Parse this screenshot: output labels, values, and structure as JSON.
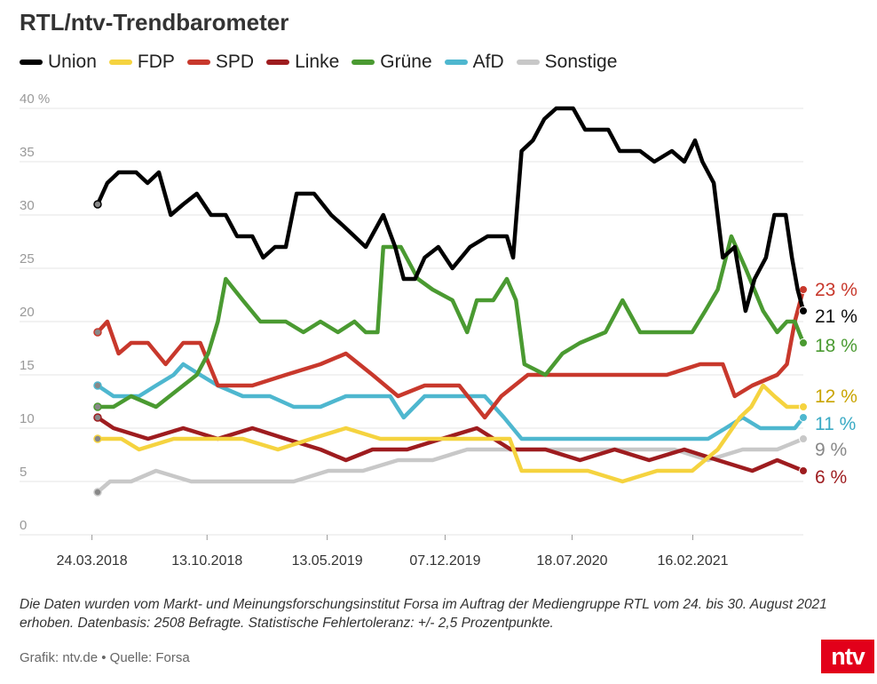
{
  "header": {
    "title": "RTL/ntv-Trendbarometer"
  },
  "colors": {
    "Union": "#000000",
    "FDP": "#f5d33f",
    "SPD": "#c8382c",
    "Linke": "#9e1c1f",
    "Grüne": "#4a9a31",
    "AfD": "#4eb7cf",
    "Sonstige": "#c8c8c8",
    "grid": "#e6e6e6",
    "tick": "#999999"
  },
  "footer": {
    "note": "Die Daten wurden vom Markt- und Meinungsforschungsinstitut Forsa im Auftrag der Mediengruppe RTL vom 24. bis 30. August 2021 erhoben. Datenbasis: 2508 Befragte. Statistische Fehlertoleranz: +/- 2,5 Prozentpunkte.",
    "credit": "Grafik: ntv.de • Quelle: Forsa",
    "logo": "ntv"
  },
  "chart_data": {
    "type": "line",
    "ylim": [
      0,
      40
    ],
    "yticks": [
      0,
      5,
      10,
      15,
      20,
      25,
      30,
      35,
      40
    ],
    "ytick_labels": [
      "0",
      "5",
      "10",
      "15",
      "20",
      "25",
      "30",
      "35",
      "40 %"
    ],
    "xticks": [
      "24.03.2018",
      "13.10.2018",
      "13.05.2019",
      "07.12.2019",
      "18.07.2020",
      "16.02.2021"
    ],
    "x_start": "2018-04-03",
    "x_end": "2021-08-30",
    "legend_position": "top-left",
    "series": [
      {
        "name": "Union",
        "end_label": "21 %",
        "points": [
          [
            "2018-04-03",
            31
          ],
          [
            "2018-04-20",
            33
          ],
          [
            "2018-05-10",
            34
          ],
          [
            "2018-06-10",
            34
          ],
          [
            "2018-06-30",
            33
          ],
          [
            "2018-07-20",
            34
          ],
          [
            "2018-08-10",
            30
          ],
          [
            "2018-09-01",
            31
          ],
          [
            "2018-09-25",
            32
          ],
          [
            "2018-10-20",
            30
          ],
          [
            "2018-11-15",
            30
          ],
          [
            "2018-12-05",
            28
          ],
          [
            "2019-01-01",
            28
          ],
          [
            "2019-01-20",
            26
          ],
          [
            "2019-02-10",
            27
          ],
          [
            "2019-03-01",
            27
          ],
          [
            "2019-03-20",
            32
          ],
          [
            "2019-04-20",
            32
          ],
          [
            "2019-05-20",
            30
          ],
          [
            "2019-06-10",
            29
          ],
          [
            "2019-06-30",
            28
          ],
          [
            "2019-07-20",
            27
          ],
          [
            "2019-08-20",
            30
          ],
          [
            "2019-09-10",
            27
          ],
          [
            "2019-09-25",
            24
          ],
          [
            "2019-10-15",
            24
          ],
          [
            "2019-11-01",
            26
          ],
          [
            "2019-11-25",
            27
          ],
          [
            "2019-12-20",
            25
          ],
          [
            "2020-01-20",
            27
          ],
          [
            "2020-02-20",
            28
          ],
          [
            "2020-03-25",
            28
          ],
          [
            "2020-04-05",
            26
          ],
          [
            "2020-04-20",
            36
          ],
          [
            "2020-05-10",
            37
          ],
          [
            "2020-05-30",
            39
          ],
          [
            "2020-06-20",
            40
          ],
          [
            "2020-07-20",
            40
          ],
          [
            "2020-08-10",
            38
          ],
          [
            "2020-09-20",
            38
          ],
          [
            "2020-10-10",
            36
          ],
          [
            "2020-11-15",
            36
          ],
          [
            "2020-12-10",
            35
          ],
          [
            "2021-01-10",
            36
          ],
          [
            "2021-02-01",
            35
          ],
          [
            "2021-02-20",
            37
          ],
          [
            "2021-03-05",
            35
          ],
          [
            "2021-03-25",
            33
          ],
          [
            "2021-04-10",
            26
          ],
          [
            "2021-05-01",
            27
          ],
          [
            "2021-05-20",
            21
          ],
          [
            "2021-06-05",
            24
          ],
          [
            "2021-06-25",
            26
          ],
          [
            "2021-07-10",
            30
          ],
          [
            "2021-07-30",
            30
          ],
          [
            "2021-08-10",
            26
          ],
          [
            "2021-08-20",
            23
          ],
          [
            "2021-08-30",
            21
          ]
        ]
      },
      {
        "name": "FDP",
        "end_label": "12 %",
        "points": [
          [
            "2018-04-03",
            9
          ],
          [
            "2018-05-15",
            9
          ],
          [
            "2018-06-15",
            8
          ],
          [
            "2018-08-15",
            9
          ],
          [
            "2018-10-15",
            9
          ],
          [
            "2018-12-15",
            9
          ],
          [
            "2019-02-15",
            8
          ],
          [
            "2019-04-15",
            9
          ],
          [
            "2019-06-15",
            10
          ],
          [
            "2019-08-15",
            9
          ],
          [
            "2019-10-15",
            9
          ],
          [
            "2019-12-15",
            9
          ],
          [
            "2020-02-15",
            9
          ],
          [
            "2020-03-30",
            9
          ],
          [
            "2020-04-20",
            6
          ],
          [
            "2020-06-15",
            6
          ],
          [
            "2020-08-15",
            6
          ],
          [
            "2020-10-15",
            5
          ],
          [
            "2020-12-15",
            6
          ],
          [
            "2021-02-15",
            6
          ],
          [
            "2021-04-01",
            8
          ],
          [
            "2021-05-10",
            11
          ],
          [
            "2021-05-30",
            12
          ],
          [
            "2021-06-20",
            14
          ],
          [
            "2021-07-10",
            13
          ],
          [
            "2021-08-01",
            12
          ],
          [
            "2021-08-30",
            12
          ]
        ]
      },
      {
        "name": "SPD",
        "end_label": "23 %",
        "points": [
          [
            "2018-04-03",
            19
          ],
          [
            "2018-04-20",
            20
          ],
          [
            "2018-05-10",
            17
          ],
          [
            "2018-06-01",
            18
          ],
          [
            "2018-07-01",
            18
          ],
          [
            "2018-08-01",
            16
          ],
          [
            "2018-09-01",
            18
          ],
          [
            "2018-10-01",
            18
          ],
          [
            "2018-11-01",
            14
          ],
          [
            "2019-01-01",
            14
          ],
          [
            "2019-03-01",
            15
          ],
          [
            "2019-05-01",
            16
          ],
          [
            "2019-06-15",
            17
          ],
          [
            "2019-08-01",
            15
          ],
          [
            "2019-09-15",
            13
          ],
          [
            "2019-11-01",
            14
          ],
          [
            "2020-01-01",
            14
          ],
          [
            "2020-02-15",
            11
          ],
          [
            "2020-03-15",
            13
          ],
          [
            "2020-05-01",
            15
          ],
          [
            "2020-06-15",
            15
          ],
          [
            "2020-09-01",
            15
          ],
          [
            "2020-11-01",
            15
          ],
          [
            "2021-01-01",
            15
          ],
          [
            "2021-03-01",
            16
          ],
          [
            "2021-04-10",
            16
          ],
          [
            "2021-05-01",
            13
          ],
          [
            "2021-06-01",
            14
          ],
          [
            "2021-07-15",
            15
          ],
          [
            "2021-08-01",
            16
          ],
          [
            "2021-08-15",
            20
          ],
          [
            "2021-08-30",
            23
          ]
        ]
      },
      {
        "name": "Linke",
        "end_label": "6 %",
        "points": [
          [
            "2018-04-03",
            11
          ],
          [
            "2018-05-01",
            10
          ],
          [
            "2018-07-01",
            9
          ],
          [
            "2018-09-01",
            10
          ],
          [
            "2018-11-01",
            9
          ],
          [
            "2019-01-01",
            10
          ],
          [
            "2019-03-01",
            9
          ],
          [
            "2019-05-01",
            8
          ],
          [
            "2019-06-15",
            7
          ],
          [
            "2019-08-01",
            8
          ],
          [
            "2019-10-01",
            8
          ],
          [
            "2019-12-01",
            9
          ],
          [
            "2020-02-01",
            10
          ],
          [
            "2020-04-01",
            8
          ],
          [
            "2020-06-01",
            8
          ],
          [
            "2020-08-01",
            7
          ],
          [
            "2020-10-01",
            8
          ],
          [
            "2020-12-01",
            7
          ],
          [
            "2021-02-01",
            8
          ],
          [
            "2021-04-01",
            7
          ],
          [
            "2021-06-01",
            6
          ],
          [
            "2021-07-15",
            7
          ],
          [
            "2021-08-30",
            6
          ]
        ]
      },
      {
        "name": "Grüne",
        "end_label": "18 %",
        "points": [
          [
            "2018-04-03",
            12
          ],
          [
            "2018-05-01",
            12
          ],
          [
            "2018-06-01",
            13
          ],
          [
            "2018-07-15",
            12
          ],
          [
            "2018-09-01",
            14
          ],
          [
            "2018-09-25",
            15
          ],
          [
            "2018-10-15",
            17
          ],
          [
            "2018-11-01",
            20
          ],
          [
            "2018-11-15",
            24
          ],
          [
            "2018-12-15",
            22
          ],
          [
            "2019-01-15",
            20
          ],
          [
            "2019-03-01",
            20
          ],
          [
            "2019-04-01",
            19
          ],
          [
            "2019-05-01",
            20
          ],
          [
            "2019-06-01",
            19
          ],
          [
            "2019-06-30",
            20
          ],
          [
            "2019-07-20",
            19
          ],
          [
            "2019-08-10",
            19
          ],
          [
            "2019-08-20",
            27
          ],
          [
            "2019-09-20",
            27
          ],
          [
            "2019-10-20",
            24
          ],
          [
            "2019-11-15",
            23
          ],
          [
            "2019-12-20",
            22
          ],
          [
            "2020-01-15",
            19
          ],
          [
            "2020-02-01",
            22
          ],
          [
            "2020-03-01",
            22
          ],
          [
            "2020-03-25",
            24
          ],
          [
            "2020-04-10",
            22
          ],
          [
            "2020-04-25",
            16
          ],
          [
            "2020-06-01",
            15
          ],
          [
            "2020-07-01",
            17
          ],
          [
            "2020-08-01",
            18
          ],
          [
            "2020-09-15",
            19
          ],
          [
            "2020-10-15",
            22
          ],
          [
            "2020-11-15",
            19
          ],
          [
            "2020-12-15",
            19
          ],
          [
            "2021-01-15",
            19
          ],
          [
            "2021-02-15",
            19
          ],
          [
            "2021-03-10",
            21
          ],
          [
            "2021-04-01",
            23
          ],
          [
            "2021-04-25",
            28
          ],
          [
            "2021-05-20",
            25
          ],
          [
            "2021-06-20",
            21
          ],
          [
            "2021-07-15",
            19
          ],
          [
            "2021-08-01",
            20
          ],
          [
            "2021-08-15",
            20
          ],
          [
            "2021-08-30",
            18
          ]
        ]
      },
      {
        "name": "AfD",
        "end_label": "11 %",
        "points": [
          [
            "2018-04-03",
            14
          ],
          [
            "2018-05-01",
            13
          ],
          [
            "2018-06-15",
            13
          ],
          [
            "2018-07-15",
            14
          ],
          [
            "2018-08-15",
            15
          ],
          [
            "2018-09-01",
            16
          ],
          [
            "2018-10-01",
            15
          ],
          [
            "2018-11-01",
            14
          ],
          [
            "2018-12-15",
            13
          ],
          [
            "2019-02-01",
            13
          ],
          [
            "2019-03-15",
            12
          ],
          [
            "2019-05-01",
            12
          ],
          [
            "2019-06-15",
            13
          ],
          [
            "2019-08-01",
            13
          ],
          [
            "2019-09-01",
            13
          ],
          [
            "2019-09-25",
            11
          ],
          [
            "2019-11-01",
            13
          ],
          [
            "2020-01-01",
            13
          ],
          [
            "2020-02-15",
            13
          ],
          [
            "2020-03-20",
            11
          ],
          [
            "2020-04-20",
            9
          ],
          [
            "2020-06-01",
            9
          ],
          [
            "2020-08-01",
            9
          ],
          [
            "2020-10-01",
            9
          ],
          [
            "2020-12-01",
            9
          ],
          [
            "2021-01-15",
            9
          ],
          [
            "2021-03-15",
            9
          ],
          [
            "2021-04-15",
            10
          ],
          [
            "2021-05-15",
            11
          ],
          [
            "2021-06-15",
            10
          ],
          [
            "2021-07-15",
            10
          ],
          [
            "2021-08-15",
            10
          ],
          [
            "2021-08-30",
            11
          ]
        ]
      },
      {
        "name": "Sonstige",
        "end_label": "9 %",
        "points": [
          [
            "2018-04-03",
            4
          ],
          [
            "2018-04-25",
            5
          ],
          [
            "2018-06-01",
            5
          ],
          [
            "2018-07-15",
            6
          ],
          [
            "2018-09-15",
            5
          ],
          [
            "2018-11-15",
            5
          ],
          [
            "2019-01-15",
            5
          ],
          [
            "2019-03-15",
            5
          ],
          [
            "2019-05-15",
            6
          ],
          [
            "2019-07-15",
            6
          ],
          [
            "2019-09-15",
            7
          ],
          [
            "2019-11-15",
            7
          ],
          [
            "2020-01-15",
            8
          ],
          [
            "2020-03-15",
            8
          ],
          [
            "2020-05-15",
            8
          ],
          [
            "2020-07-15",
            8
          ],
          [
            "2020-09-15",
            8
          ],
          [
            "2020-11-15",
            8
          ],
          [
            "2021-01-15",
            8
          ],
          [
            "2021-03-15",
            7
          ],
          [
            "2021-05-15",
            8
          ],
          [
            "2021-07-15",
            8
          ],
          [
            "2021-08-30",
            9
          ]
        ]
      }
    ]
  }
}
